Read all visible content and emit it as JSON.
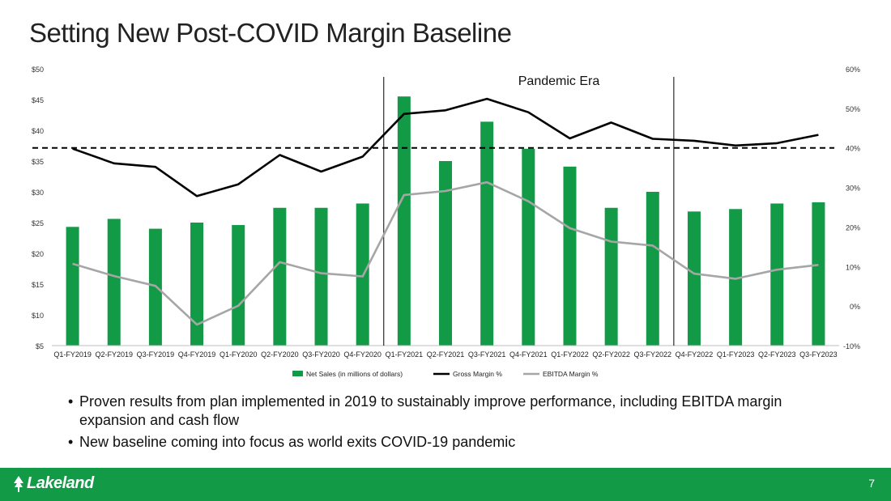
{
  "slide": {
    "title": "Setting New Post-COVID Margin Baseline",
    "page_number": "7",
    "logo_text": "Lakeland",
    "bullets": [
      "Proven results from plan implemented in 2019 to sustainably improve performance, including EBITDA margin expansion and cash flow",
      "New baseline coming into focus as world exits COVID-19 pandemic"
    ],
    "colors": {
      "brand_green": "#129A47",
      "bar_green": "#129A47",
      "gross_line": "#000000",
      "ebitda_line": "#A6A6A6"
    }
  },
  "chart_data": {
    "type": "bar",
    "categories": [
      "Q1-FY2019",
      "Q2-FY2019",
      "Q3-FY2019",
      "Q4-FY2019",
      "Q1-FY2020",
      "Q2-FY2020",
      "Q3-FY2020",
      "Q4-FY2020",
      "Q1-FY2021",
      "Q2-FY2021",
      "Q3-FY2021",
      "Q4-FY2021",
      "Q1-FY2022",
      "Q2-FY2022",
      "Q3-FY2022",
      "Q4-FY2022",
      "Q1-FY2023",
      "Q2-FY2023",
      "Q3-FY2023"
    ],
    "series": [
      {
        "name": "Net Sales (in millions of dollars)",
        "type": "bar",
        "axis": "left",
        "values": [
          24.3,
          25.6,
          24.0,
          25.0,
          24.6,
          27.4,
          27.4,
          28.1,
          45.5,
          35.0,
          41.4,
          37.0,
          34.1,
          27.4,
          30.0,
          26.8,
          27.2,
          28.1,
          28.3
        ]
      },
      {
        "name": "Gross Margin %",
        "type": "line",
        "axis": "right",
        "values": [
          39.8,
          36.1,
          35.2,
          27.8,
          30.8,
          38.2,
          34.0,
          37.8,
          48.6,
          49.5,
          52.4,
          49.0,
          42.4,
          46.4,
          42.3,
          41.8,
          40.6,
          41.2,
          43.3
        ]
      },
      {
        "name": "EBITDA Margin %",
        "type": "line",
        "axis": "right",
        "values": [
          10.7,
          7.6,
          5.1,
          -4.7,
          0.1,
          11.1,
          8.3,
          7.5,
          28.1,
          29.1,
          31.3,
          26.5,
          19.7,
          16.3,
          15.3,
          8.2,
          6.9,
          9.2,
          10.4
        ]
      }
    ],
    "y_left": {
      "min": 5,
      "max": 50,
      "ticks": [
        "$5",
        "$10",
        "$15",
        "$20",
        "$25",
        "$30",
        "$35",
        "$40",
        "$45",
        "$50"
      ]
    },
    "y_right": {
      "min": -10,
      "max": 60,
      "ticks": [
        "-10%",
        "0%",
        "10%",
        "20%",
        "30%",
        "40%",
        "50%",
        "60%"
      ]
    },
    "baseline_percent": 40,
    "annotation": "Pandemic Era",
    "pandemic_era_bounds": [
      "Q4-FY2020",
      "Q3-FY2022"
    ],
    "legend_position": "bottom",
    "grid": false
  }
}
